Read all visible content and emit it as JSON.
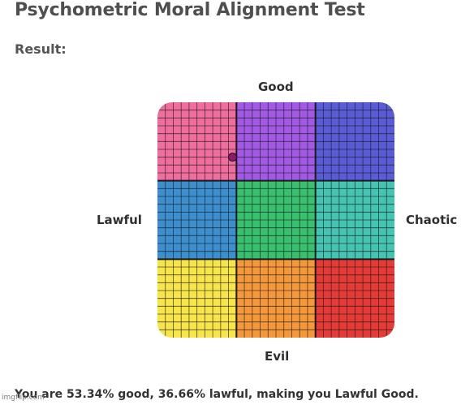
{
  "title": "Psychometric Moral Alignment Test",
  "result_label": "Result:",
  "axes": {
    "top": "Good",
    "bottom": "Evil",
    "left": "Lawful",
    "right": "Chaotic"
  },
  "grid": {
    "cells": [
      {
        "name": "lawful-good",
        "color": "#f06d9d"
      },
      {
        "name": "neutral-good",
        "color": "#a259e6"
      },
      {
        "name": "chaotic-good",
        "color": "#5a5bd6"
      },
      {
        "name": "lawful-neutral",
        "color": "#3c8fce"
      },
      {
        "name": "true-neutral",
        "color": "#37c16e"
      },
      {
        "name": "chaotic-neutral",
        "color": "#44c4b3"
      },
      {
        "name": "lawful-evil",
        "color": "#f8e54a"
      },
      {
        "name": "neutral-evil",
        "color": "#f5983a"
      },
      {
        "name": "chaotic-evil",
        "color": "#e53a36"
      }
    ],
    "marker_color": "#8a1c6d",
    "result": {
      "good_percent": 53.34,
      "lawful_percent": 36.66
    }
  },
  "summary": "You are 53.34% good, 36.66% lawful, making you Lawful Good.",
  "watermark": "imgflip.com"
}
